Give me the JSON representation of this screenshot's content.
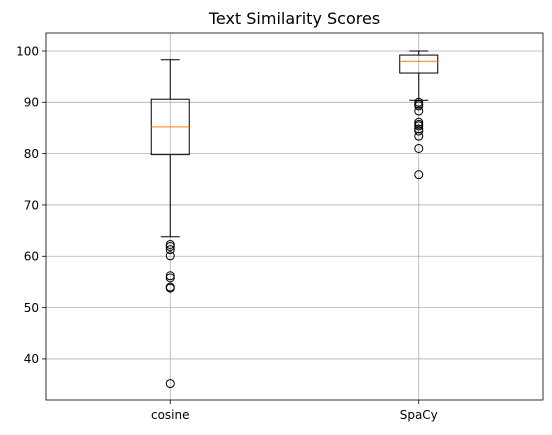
{
  "chart_data": {
    "type": "box",
    "title": "Text Similarity Scores",
    "xlabel": "",
    "ylabel": "",
    "ylim": [
      32.0,
      103.5
    ],
    "yticks": [
      40,
      50,
      60,
      70,
      80,
      90,
      100
    ],
    "grid": true,
    "categories": [
      "cosine",
      "SpaCy"
    ],
    "boxes": [
      {
        "label": "cosine",
        "whisker_low": 63.8,
        "q1": 79.8,
        "median": 85.2,
        "q3": 90.6,
        "whisker_high": 98.3,
        "outliers": [
          62.3,
          61.9,
          61.3,
          60.1,
          56.2,
          55.8,
          54.0,
          53.8,
          35.2
        ]
      },
      {
        "label": "SpaCy",
        "whisker_low": 90.4,
        "q1": 95.7,
        "median": 98.0,
        "q3": 99.2,
        "whisker_high": 100.0,
        "outliers": [
          90.0,
          89.6,
          89.3,
          88.3,
          86.1,
          85.7,
          85.4,
          84.8,
          84.4,
          83.4,
          81.0,
          75.9
        ]
      }
    ],
    "colors": {
      "box": "#000000",
      "median": "#ff7f0e",
      "grid": "#b0b0b0",
      "flier": "#000000"
    }
  }
}
